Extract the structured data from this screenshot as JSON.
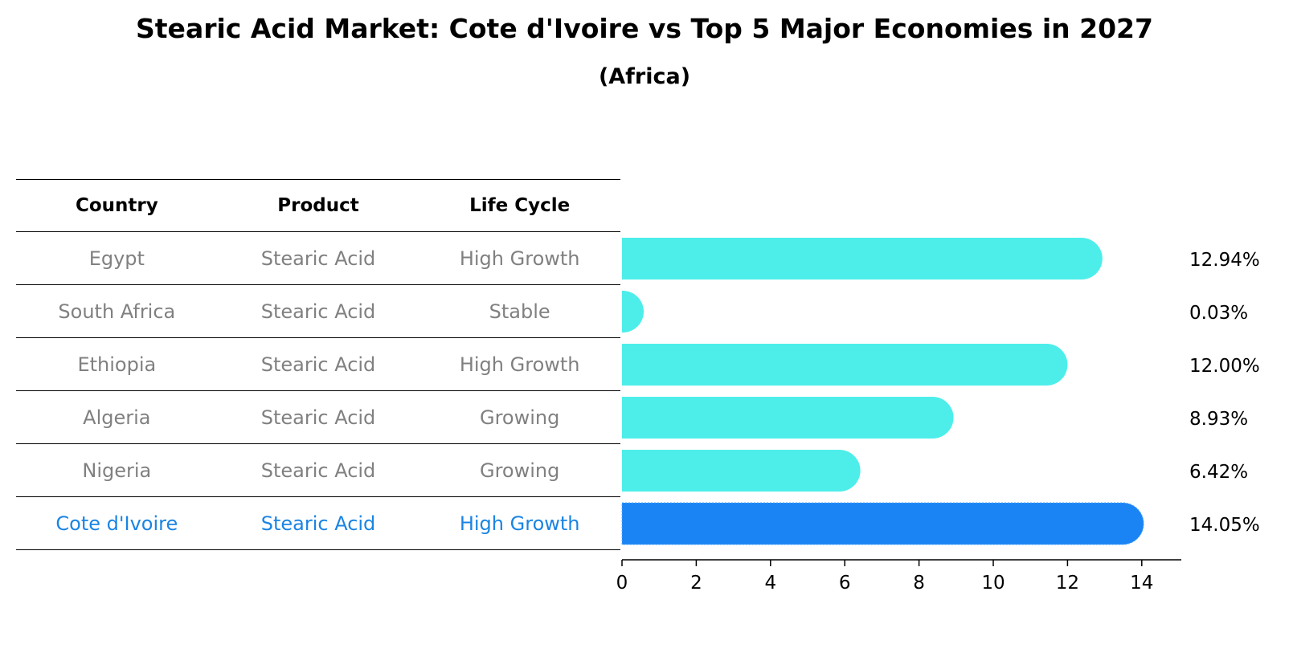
{
  "chart_data": {
    "type": "bar",
    "orientation": "horizontal",
    "title": "Stearic Acid Market: Cote d'Ivoire vs Top 5 Major Economies in 2027",
    "subtitle": "(Africa)",
    "table": {
      "headers": [
        "Country",
        "Product",
        "Life Cycle"
      ],
      "rows": [
        {
          "country": "Egypt",
          "product": "Stearic Acid",
          "life_cycle": "High Growth"
        },
        {
          "country": "South Africa",
          "product": "Stearic Acid",
          "life_cycle": "Stable"
        },
        {
          "country": "Ethiopia",
          "product": "Stearic Acid",
          "life_cycle": "High Growth"
        },
        {
          "country": "Algeria",
          "product": "Stearic Acid",
          "life_cycle": "Growing"
        },
        {
          "country": "Nigeria",
          "product": "Stearic Acid",
          "life_cycle": "Growing"
        },
        {
          "country": "Cote d'Ivoire",
          "product": "Stearic Acid",
          "life_cycle": "High Growth"
        }
      ]
    },
    "categories": [
      "Egypt",
      "South Africa",
      "Ethiopia",
      "Algeria",
      "Nigeria",
      "Cote d'Ivoire"
    ],
    "values": [
      12.94,
      0.03,
      12.0,
      8.93,
      6.42,
      14.05
    ],
    "value_labels": [
      "12.94%",
      "0.03%",
      "12.00%",
      "8.93%",
      "6.42%",
      "14.05%"
    ],
    "highlight": "Cote d'Ivoire",
    "xlim": [
      0,
      14.7
    ],
    "xticks": [
      0,
      2,
      4,
      6,
      8,
      10,
      12,
      14
    ],
    "colors": {
      "bar": "#4deeea",
      "highlight": "#1a84f5",
      "highlight_text": "#1a84e3"
    }
  }
}
